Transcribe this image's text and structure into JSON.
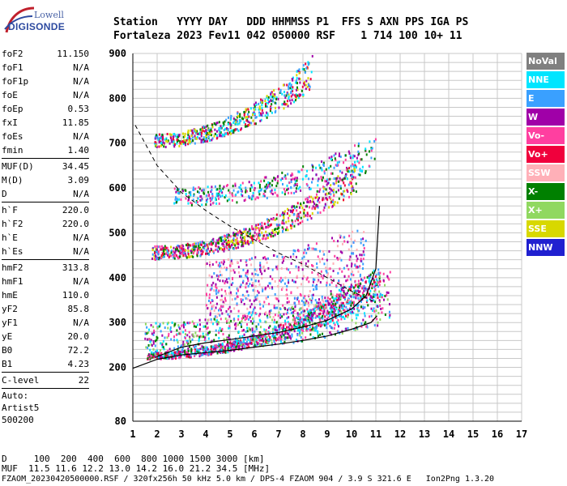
{
  "logo": {
    "line1": "Lowell",
    "line2": "DIGISONDE"
  },
  "header": {
    "labels": "Station   YYYY DAY   DDD HHMMSS P1  FFS S AXN PPS IGA PS",
    "values": "Fortaleza 2023 Fev11 042 050000 RSF    1 714 100 10+ 11"
  },
  "params_group1": [
    {
      "name": "foF2",
      "value": "11.150"
    },
    {
      "name": "foF1",
      "value": "N/A"
    },
    {
      "name": "foF1p",
      "value": "N/A"
    },
    {
      "name": "foE",
      "value": "N/A"
    },
    {
      "name": "foEp",
      "value": "0.53"
    },
    {
      "name": "fxI",
      "value": "11.85"
    },
    {
      "name": "foEs",
      "value": "N/A"
    },
    {
      "name": "fmin",
      "value": "1.40"
    }
  ],
  "params_group2": [
    {
      "name": "MUF(D)",
      "value": "34.45"
    },
    {
      "name": "M(D)",
      "value": "3.09"
    },
    {
      "name": "D",
      "value": "N/A"
    }
  ],
  "params_group3": [
    {
      "name": "h`F",
      "value": "220.0"
    },
    {
      "name": "h`F2",
      "value": "220.0"
    },
    {
      "name": "h`E",
      "value": "N/A"
    },
    {
      "name": "h`Es",
      "value": "N/A"
    }
  ],
  "params_group4": [
    {
      "name": "hmF2",
      "value": "313.8"
    },
    {
      "name": "hmF1",
      "value": "N/A"
    },
    {
      "name": "hmE",
      "value": "110.0"
    },
    {
      "name": "yF2",
      "value": "85.8"
    },
    {
      "name": "yF1",
      "value": "N/A"
    },
    {
      "name": "yE",
      "value": "20.0"
    },
    {
      "name": "B0",
      "value": "72.2"
    },
    {
      "name": "B1",
      "value": "4.23"
    }
  ],
  "params_group5": [
    {
      "name": "C-level",
      "value": "22"
    }
  ],
  "auto": {
    "line1": "Auto:",
    "line2": "Artist5",
    "line3": "500200"
  },
  "legend": [
    {
      "label": "NoVal",
      "color": "#808080"
    },
    {
      "label": "NNE",
      "color": "#00e5ff"
    },
    {
      "label": "E",
      "color": "#3aa0ff"
    },
    {
      "label": "W",
      "color": "#a000a8"
    },
    {
      "label": "Vo-",
      "color": "#ff3fa0"
    },
    {
      "label": "Vo+",
      "color": "#f0003c"
    },
    {
      "label": "SSW",
      "color": "#ffb0b8"
    },
    {
      "label": "X-",
      "color": "#008000"
    },
    {
      "label": "X+",
      "color": "#90d860"
    },
    {
      "label": "SSE",
      "color": "#d8d800"
    },
    {
      "label": "NNW",
      "color": "#2020d0"
    }
  ],
  "footer": {
    "d_line": "D     100  200  400  600  800 1000 1500 3000 [km]",
    "muf_line": "MUF  11.5 11.6 12.2 13.0 14.2 16.0 21.2 34.5 [MHz]",
    "file_line": "FZAOM_20230420500000.RSF / 320fx256h 50 kHz 5.0 km / DPS-4 FZAOM 904 / 3.9 S 321.6 E   Ion2Png 1.3.20"
  },
  "chart_data": {
    "type": "scatter",
    "xlim": [
      1,
      17
    ],
    "ylim": [
      80,
      900
    ],
    "x_ticks": [
      "1",
      "2",
      "3",
      "4",
      "5",
      "6",
      "7",
      "8",
      "9",
      "10",
      "11",
      "12",
      "13",
      "14",
      "15",
      "16",
      "17"
    ],
    "y_ticks": [
      {
        "value": 900,
        "label": "900"
      },
      {
        "value": 800,
        "label": "800"
      },
      {
        "value": 700,
        "label": "700"
      },
      {
        "value": 600,
        "label": "600"
      },
      {
        "value": 500,
        "label": "500"
      },
      {
        "value": 400,
        "label": "400"
      },
      {
        "value": 300,
        "label": "300"
      },
      {
        "value": 200,
        "label": "200"
      },
      {
        "value": 80,
        "label": "80"
      }
    ],
    "grid": true,
    "clusters": [
      {
        "x": [
          1.6,
          11.2
        ],
        "y": [
          218,
          232
        ],
        "y_end": [
          350,
          430
        ],
        "colors": [
          "#f0003c",
          "#ff3fa0",
          "#008000",
          "#00e5ff",
          "#3aa0ff",
          "#a000a8"
        ],
        "density": 900
      },
      {
        "x": [
          1.5,
          11.6
        ],
        "y": [
          228,
          300
        ],
        "y_end": [
          300,
          420
        ],
        "colors": [
          "#00e5ff",
          "#3aa0ff",
          "#008000",
          "#90d860",
          "#ff3fa0",
          "#a000a8"
        ],
        "density": 700
      },
      {
        "x": [
          4.0,
          10.6
        ],
        "y": [
          300,
          440
        ],
        "y_end": [
          360,
          520
        ],
        "colors": [
          "#a000a8",
          "#ff3fa0",
          "#ffb0b8",
          "#3aa0ff"
        ],
        "density": 600
      },
      {
        "x": [
          1.8,
          10.2
        ],
        "y": [
          440,
          470
        ],
        "y_end": [
          590,
          660
        ],
        "colors": [
          "#f0003c",
          "#ff3fa0",
          "#d8d800",
          "#3aa0ff",
          "#a000a8",
          "#008000"
        ],
        "density": 750
      },
      {
        "x": [
          2.7,
          11.0
        ],
        "y": [
          560,
          600
        ],
        "y_end": [
          640,
          720
        ],
        "colors": [
          "#3aa0ff",
          "#00e5ff",
          "#a000a8",
          "#008000",
          "#ff3fa0"
        ],
        "density": 400
      },
      {
        "x": [
          1.9,
          8.4
        ],
        "y": [
          690,
          720
        ],
        "y_end": [
          820,
          895
        ],
        "colors": [
          "#3aa0ff",
          "#00e5ff",
          "#f0003c",
          "#d8d800",
          "#a000a8",
          "#008000"
        ],
        "density": 550
      }
    ],
    "trace_f2": {
      "x": [
        1.9,
        3,
        4,
        5,
        6,
        7,
        8,
        9,
        10,
        10.6,
        11.0,
        11.15
      ],
      "y": [
        222,
        245,
        255,
        262,
        270,
        278,
        290,
        305,
        330,
        360,
        420,
        560
      ]
    },
    "trace_profile": {
      "x": [
        1.0,
        2,
        3,
        4,
        5,
        6,
        7,
        8,
        9,
        10,
        10.8,
        11.05
      ],
      "y": [
        198,
        218,
        228,
        233,
        238,
        245,
        252,
        260,
        270,
        285,
        300,
        315
      ]
    },
    "muf_dashed": {
      "x": [
        1.1,
        2,
        3,
        4,
        5,
        6,
        7,
        8,
        9,
        10,
        11
      ],
      "y": [
        740,
        650,
        590,
        550,
        515,
        485,
        455,
        430,
        400,
        370,
        345
      ]
    }
  }
}
